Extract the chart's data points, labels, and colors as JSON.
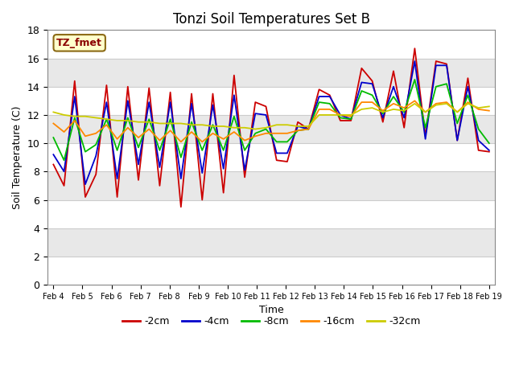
{
  "title": "Tonzi Soil Temperatures Set B",
  "xlabel": "Time",
  "ylabel": "Soil Temperature (C)",
  "annotation": "TZ_fmet",
  "ylim": [
    0,
    18
  ],
  "yticks": [
    0,
    2,
    4,
    6,
    8,
    10,
    12,
    14,
    16,
    18
  ],
  "bg_color": "#ffffff",
  "plot_bg_color": "#ffffff",
  "x_labels": [
    "Feb 4",
    "Feb 5",
    "Feb 6",
    "Feb 7",
    "Feb 8",
    "Feb 9",
    "Feb 10",
    "Feb 11",
    "Feb 12",
    "Feb 13",
    "Feb 14",
    "Feb 15",
    "Feb 16",
    "Feb 17",
    "Feb 18",
    "Feb 19"
  ],
  "lines": {
    "-2cm": {
      "color": "#cc0000",
      "data": [
        8.5,
        7.0,
        14.4,
        6.2,
        7.8,
        14.1,
        6.2,
        14.0,
        7.4,
        13.9,
        7.0,
        13.6,
        5.5,
        13.5,
        6.0,
        13.5,
        6.5,
        14.8,
        7.6,
        12.9,
        12.6,
        8.8,
        8.7,
        11.5,
        11.0,
        13.8,
        13.4,
        11.6,
        11.6,
        15.3,
        14.4,
        11.5,
        15.1,
        11.1,
        16.7,
        10.5,
        15.8,
        15.6,
        10.2,
        14.6,
        9.5,
        9.4
      ]
    },
    "-4cm": {
      "color": "#0000cc",
      "data": [
        9.2,
        8.0,
        13.3,
        7.1,
        9.1,
        12.9,
        7.5,
        13.0,
        8.5,
        12.9,
        8.3,
        12.9,
        7.5,
        12.8,
        7.9,
        12.7,
        8.2,
        13.4,
        8.1,
        12.1,
        12.0,
        9.3,
        9.3,
        11.2,
        11.0,
        13.3,
        13.3,
        12.0,
        11.7,
        14.3,
        14.2,
        11.8,
        14.0,
        11.8,
        15.8,
        10.3,
        15.5,
        15.5,
        10.2,
        14.0,
        10.2,
        9.5
      ]
    },
    "-8cm": {
      "color": "#00bb00",
      "data": [
        10.4,
        8.8,
        11.8,
        9.4,
        9.9,
        11.7,
        9.5,
        11.8,
        9.7,
        11.7,
        9.5,
        11.7,
        9.0,
        11.5,
        9.5,
        11.3,
        9.5,
        11.9,
        9.5,
        10.7,
        11.0,
        10.1,
        10.1,
        10.9,
        11.0,
        12.9,
        12.8,
        11.8,
        11.7,
        13.7,
        13.4,
        12.1,
        13.3,
        12.2,
        14.5,
        11.1,
        14.0,
        14.2,
        11.4,
        13.4,
        11.0,
        10.0
      ]
    },
    "-16cm": {
      "color": "#ff8800",
      "data": [
        11.4,
        10.8,
        11.6,
        10.5,
        10.7,
        11.3,
        10.3,
        11.1,
        10.4,
        11.0,
        10.2,
        10.9,
        10.1,
        10.8,
        10.1,
        10.7,
        10.3,
        10.8,
        10.2,
        10.5,
        10.7,
        10.7,
        10.7,
        10.9,
        11.0,
        12.4,
        12.4,
        12.0,
        11.9,
        12.9,
        12.9,
        12.3,
        12.8,
        12.5,
        13.0,
        12.2,
        12.8,
        12.9,
        12.2,
        12.9,
        12.4,
        12.3
      ]
    },
    "-32cm": {
      "color": "#cccc00",
      "data": [
        12.2,
        12.0,
        11.9,
        11.9,
        11.8,
        11.7,
        11.6,
        11.6,
        11.5,
        11.5,
        11.4,
        11.4,
        11.4,
        11.3,
        11.3,
        11.2,
        11.2,
        11.1,
        11.1,
        11.0,
        11.1,
        11.3,
        11.3,
        11.2,
        11.2,
        12.0,
        12.0,
        12.0,
        12.0,
        12.4,
        12.5,
        12.2,
        12.4,
        12.3,
        12.8,
        12.2,
        12.7,
        12.8,
        12.2,
        12.8,
        12.5,
        12.6
      ]
    }
  },
  "legend_order": [
    "-2cm",
    "-4cm",
    "-8cm",
    "-16cm",
    "-32cm"
  ],
  "band_colors": [
    "#ffffff",
    "#e8e8e8"
  ]
}
